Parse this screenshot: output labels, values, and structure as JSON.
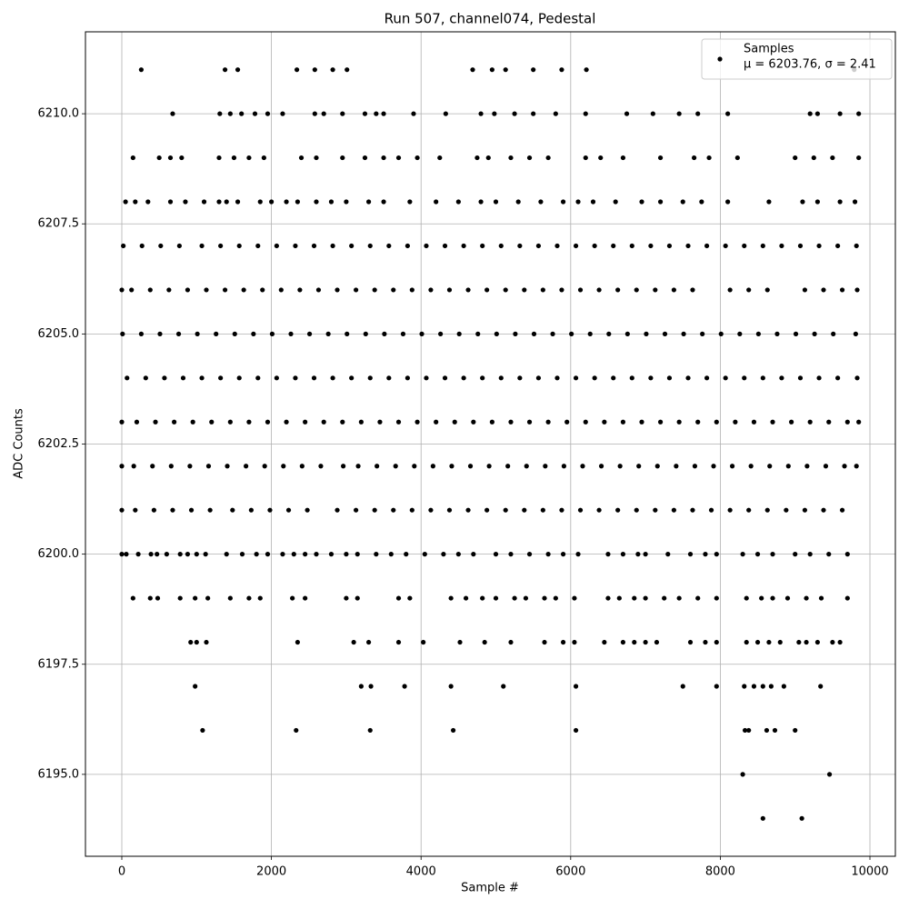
{
  "chart_data": {
    "type": "scatter",
    "title": "Run 507, channel074, Pedestal",
    "x_label": "Sample #",
    "y_label": "ADC Counts",
    "annotation": "μ = 6203.76, σ = 2.41",
    "legend": "upper right",
    "grid": true,
    "xlim": [
      -486,
      10340
    ],
    "ylim": [
      6193.14,
      6211.86
    ],
    "xticks": [
      0,
      2000,
      4000,
      6000,
      8000,
      10000
    ],
    "yticks": [
      {
        "value": 6195,
        "label": "6195.0"
      },
      {
        "value": 6197.5,
        "label": "6197.5"
      },
      {
        "value": 6200,
        "label": "6200.0"
      },
      {
        "value": 6202.5,
        "label": "6202.5"
      },
      {
        "value": 6205,
        "label": "6205.0"
      },
      {
        "value": 6207.5,
        "label": "6207.5"
      },
      {
        "value": 6210,
        "label": "6210.0"
      }
    ],
    "x": [
      20,
      270,
      520,
      770,
      1070,
      1320,
      1570,
      1820,
      2070,
      2320,
      2570,
      2820,
      3070,
      3320,
      3570,
      3820,
      4070,
      4320,
      4570,
      4820,
      5070,
      5320,
      5570,
      5820,
      6070,
      6320,
      6570,
      6820,
      7070,
      7320,
      7570,
      7820,
      8070,
      8320,
      8570,
      8820,
      9070,
      9320,
      9570,
      9820,
      0,
      130,
      380,
      630,
      880,
      1130,
      1380,
      1630,
      1880,
      2130,
      2380,
      2630,
      2880,
      3130,
      3380,
      3630,
      3880,
      4130,
      4380,
      4630,
      4880,
      5130,
      5380,
      5630,
      5880,
      6130,
      6380,
      6630,
      6880,
      7130,
      7380,
      7630,
      8130,
      8380,
      8630,
      9130,
      9380,
      9630,
      9830,
      10,
      260,
      510,
      760,
      1010,
      1260,
      1510,
      1760,
      2010,
      2260,
      2510,
      2760,
      3010,
      3260,
      3510,
      3760,
      4010,
      4260,
      4510,
      4760,
      5010,
      5260,
      5510,
      5760,
      6010,
      6260,
      6510,
      6760,
      7010,
      7260,
      7510,
      7760,
      8010,
      8260,
      8510,
      8760,
      9010,
      9260,
      9510,
      9810,
      70,
      320,
      570,
      820,
      1070,
      1320,
      1570,
      1820,
      2070,
      2320,
      2570,
      2820,
      3070,
      3320,
      3570,
      3820,
      4070,
      4320,
      4570,
      4820,
      5070,
      5320,
      5570,
      5820,
      6070,
      6320,
      6570,
      6820,
      7070,
      7320,
      7570,
      7820,
      8070,
      8320,
      8570,
      8820,
      9070,
      9320,
      9570,
      9830,
      0,
      200,
      450,
      700,
      950,
      1200,
      1450,
      1700,
      1950,
      2200,
      2450,
      2700,
      2950,
      3200,
      3450,
      3700,
      3950,
      4200,
      4450,
      4700,
      4950,
      5200,
      5450,
      5700,
      5950,
      6200,
      6450,
      6700,
      6950,
      7200,
      7450,
      7700,
      7950,
      8200,
      8450,
      8700,
      8950,
      9200,
      9450,
      9700,
      9850,
      0,
      160,
      410,
      660,
      910,
      1160,
      1410,
      1660,
      1910,
      2160,
      2410,
      2660,
      2960,
      3160,
      3410,
      3660,
      3910,
      4160,
      4410,
      4660,
      4910,
      5160,
      5410,
      5660,
      5910,
      6160,
      6410,
      6660,
      6910,
      7160,
      7410,
      7660,
      7910,
      8160,
      8410,
      8660,
      8910,
      9160,
      9410,
      9660,
      9820,
      0,
      180,
      430,
      680,
      930,
      1180,
      1480,
      1730,
      1980,
      2230,
      2480,
      2880,
      3130,
      3380,
      3630,
      3880,
      4130,
      4380,
      4630,
      4880,
      5130,
      5380,
      5630,
      5880,
      6130,
      6380,
      6630,
      6880,
      7130,
      7380,
      7630,
      7880,
      8130,
      8380,
      8630,
      8880,
      9130,
      9380,
      9630,
      0,
      60,
      220,
      390,
      470,
      600,
      780,
      880,
      1000,
      1120,
      1400,
      1610,
      1800,
      1950,
      2150,
      2300,
      2450,
      2600,
      2800,
      3000,
      3150,
      3400,
      3600,
      3800,
      4050,
      4300,
      4500,
      4700,
      5000,
      5200,
      5450,
      5700,
      5900,
      6100,
      6500,
      6700,
      6900,
      7000,
      7300,
      7600,
      7800,
      7950,
      8300,
      8500,
      8700,
      9000,
      9200,
      9450,
      9700,
      150,
      380,
      480,
      780,
      980,
      1150,
      1450,
      1700,
      1850,
      2280,
      2450,
      3000,
      3150,
      3700,
      3850,
      4400,
      4600,
      4820,
      5000,
      5250,
      5400,
      5650,
      5800,
      6050,
      6500,
      6650,
      6850,
      7000,
      7250,
      7450,
      7700,
      7950,
      8350,
      8550,
      8700,
      8900,
      9150,
      9350,
      9700,
      920,
      1000,
      1130,
      2350,
      3100,
      3300,
      3700,
      4030,
      4520,
      4850,
      5200,
      5650,
      5900,
      6050,
      6450,
      6700,
      6850,
      7000,
      7150,
      7600,
      7800,
      7950,
      8350,
      8500,
      8650,
      8800,
      9050,
      9150,
      9300,
      9500,
      9600,
      980,
      3200,
      3330,
      3780,
      4400,
      5100,
      6070,
      7500,
      7950,
      8320,
      8450,
      8570,
      8680,
      8850,
      9340,
      1080,
      2330,
      3320,
      4430,
      6070,
      8330,
      8380,
      8620,
      8730,
      9000,
      8300,
      9460,
      8570,
      9090,
      50,
      180,
      350,
      650,
      850,
      1100,
      1300,
      1400,
      1550,
      1850,
      2000,
      2200,
      2350,
      2600,
      2800,
      3000,
      3300,
      3500,
      3850,
      4200,
      4500,
      4800,
      5000,
      5300,
      5600,
      5900,
      6100,
      6300,
      6600,
      6950,
      7200,
      7500,
      7750,
      8100,
      8650,
      9100,
      9300,
      9600,
      9800,
      150,
      500,
      650,
      800,
      1300,
      1500,
      1700,
      1900,
      2400,
      2600,
      2950,
      3250,
      3500,
      3700,
      3950,
      4250,
      4750,
      4900,
      5200,
      5450,
      5700,
      6200,
      6400,
      6700,
      7200,
      7650,
      7850,
      8230,
      9000,
      9250,
      9500,
      9850,
      680,
      1310,
      1450,
      1600,
      1780,
      1950,
      2150,
      2580,
      2700,
      2950,
      3250,
      3400,
      3500,
      3900,
      4330,
      4800,
      4980,
      5250,
      5500,
      5800,
      6200,
      6750,
      7100,
      7450,
      7700,
      8100,
      9200,
      9300,
      9600,
      9850,
      260,
      1380,
      1550,
      2340,
      2580,
      2820,
      3010,
      4690,
      4950,
      5130,
      5500,
      5880,
      6210,
      9790
    ],
    "series": [
      {
        "name": "Samples",
        "color": "#000000",
        "values": [
          6207,
          6207,
          6207,
          6207,
          6207,
          6207,
          6207,
          6207,
          6207,
          6207,
          6207,
          6207,
          6207,
          6207,
          6207,
          6207,
          6207,
          6207,
          6207,
          6207,
          6207,
          6207,
          6207,
          6207,
          6207,
          6207,
          6207,
          6207,
          6207,
          6207,
          6207,
          6207,
          6207,
          6207,
          6207,
          6207,
          6207,
          6207,
          6207,
          6207,
          6206,
          6206,
          6206,
          6206,
          6206,
          6206,
          6206,
          6206,
          6206,
          6206,
          6206,
          6206,
          6206,
          6206,
          6206,
          6206,
          6206,
          6206,
          6206,
          6206,
          6206,
          6206,
          6206,
          6206,
          6206,
          6206,
          6206,
          6206,
          6206,
          6206,
          6206,
          6206,
          6206,
          6206,
          6206,
          6206,
          6206,
          6206,
          6206,
          6205,
          6205,
          6205,
          6205,
          6205,
          6205,
          6205,
          6205,
          6205,
          6205,
          6205,
          6205,
          6205,
          6205,
          6205,
          6205,
          6205,
          6205,
          6205,
          6205,
          6205,
          6205,
          6205,
          6205,
          6205,
          6205,
          6205,
          6205,
          6205,
          6205,
          6205,
          6205,
          6205,
          6205,
          6205,
          6205,
          6205,
          6205,
          6205,
          6205,
          6204,
          6204,
          6204,
          6204,
          6204,
          6204,
          6204,
          6204,
          6204,
          6204,
          6204,
          6204,
          6204,
          6204,
          6204,
          6204,
          6204,
          6204,
          6204,
          6204,
          6204,
          6204,
          6204,
          6204,
          6204,
          6204,
          6204,
          6204,
          6204,
          6204,
          6204,
          6204,
          6204,
          6204,
          6204,
          6204,
          6204,
          6204,
          6204,
          6204,
          6203,
          6203,
          6203,
          6203,
          6203,
          6203,
          6203,
          6203,
          6203,
          6203,
          6203,
          6203,
          6203,
          6203,
          6203,
          6203,
          6203,
          6203,
          6203,
          6203,
          6203,
          6203,
          6203,
          6203,
          6203,
          6203,
          6203,
          6203,
          6203,
          6203,
          6203,
          6203,
          6203,
          6203,
          6203,
          6203,
          6203,
          6203,
          6203,
          6203,
          6203,
          6202,
          6202,
          6202,
          6202,
          6202,
          6202,
          6202,
          6202,
          6202,
          6202,
          6202,
          6202,
          6202,
          6202,
          6202,
          6202,
          6202,
          6202,
          6202,
          6202,
          6202,
          6202,
          6202,
          6202,
          6202,
          6202,
          6202,
          6202,
          6202,
          6202,
          6202,
          6202,
          6202,
          6202,
          6202,
          6202,
          6202,
          6202,
          6202,
          6202,
          6202,
          6201,
          6201,
          6201,
          6201,
          6201,
          6201,
          6201,
          6201,
          6201,
          6201,
          6201,
          6201,
          6201,
          6201,
          6201,
          6201,
          6201,
          6201,
          6201,
          6201,
          6201,
          6201,
          6201,
          6201,
          6201,
          6201,
          6201,
          6201,
          6201,
          6201,
          6201,
          6201,
          6201,
          6201,
          6201,
          6201,
          6201,
          6201,
          6201,
          6200,
          6200,
          6200,
          6200,
          6200,
          6200,
          6200,
          6200,
          6200,
          6200,
          6200,
          6200,
          6200,
          6200,
          6200,
          6200,
          6200,
          6200,
          6200,
          6200,
          6200,
          6200,
          6200,
          6200,
          6200,
          6200,
          6200,
          6200,
          6200,
          6200,
          6200,
          6200,
          6200,
          6200,
          6200,
          6200,
          6200,
          6200,
          6200,
          6200,
          6200,
          6200,
          6200,
          6200,
          6200,
          6200,
          6200,
          6200,
          6200,
          6199,
          6199,
          6199,
          6199,
          6199,
          6199,
          6199,
          6199,
          6199,
          6199,
          6199,
          6199,
          6199,
          6199,
          6199,
          6199,
          6199,
          6199,
          6199,
          6199,
          6199,
          6199,
          6199,
          6199,
          6199,
          6199,
          6199,
          6199,
          6199,
          6199,
          6199,
          6199,
          6199,
          6199,
          6199,
          6199,
          6199,
          6199,
          6199,
          6198,
          6198,
          6198,
          6198,
          6198,
          6198,
          6198,
          6198,
          6198,
          6198,
          6198,
          6198,
          6198,
          6198,
          6198,
          6198,
          6198,
          6198,
          6198,
          6198,
          6198,
          6198,
          6198,
          6198,
          6198,
          6198,
          6198,
          6198,
          6198,
          6198,
          6198,
          6197,
          6197,
          6197,
          6197,
          6197,
          6197,
          6197,
          6197,
          6197,
          6197,
          6197,
          6197,
          6197,
          6197,
          6197,
          6196,
          6196,
          6196,
          6196,
          6196,
          6196,
          6196,
          6196,
          6196,
          6196,
          6195,
          6195,
          6194,
          6194,
          6208,
          6208,
          6208,
          6208,
          6208,
          6208,
          6208,
          6208,
          6208,
          6208,
          6208,
          6208,
          6208,
          6208,
          6208,
          6208,
          6208,
          6208,
          6208,
          6208,
          6208,
          6208,
          6208,
          6208,
          6208,
          6208,
          6208,
          6208,
          6208,
          6208,
          6208,
          6208,
          6208,
          6208,
          6208,
          6208,
          6208,
          6208,
          6208,
          6209,
          6209,
          6209,
          6209,
          6209,
          6209,
          6209,
          6209,
          6209,
          6209,
          6209,
          6209,
          6209,
          6209,
          6209,
          6209,
          6209,
          6209,
          6209,
          6209,
          6209,
          6209,
          6209,
          6209,
          6209,
          6209,
          6209,
          6209,
          6209,
          6209,
          6209,
          6209,
          6210,
          6210,
          6210,
          6210,
          6210,
          6210,
          6210,
          6210,
          6210,
          6210,
          6210,
          6210,
          6210,
          6210,
          6210,
          6210,
          6210,
          6210,
          6210,
          6210,
          6210,
          6210,
          6210,
          6210,
          6210,
          6210,
          6210,
          6210,
          6210,
          6210,
          6211,
          6211,
          6211,
          6211,
          6211,
          6211,
          6211,
          6211,
          6211,
          6211,
          6211,
          6211,
          6211,
          6211
        ]
      }
    ]
  }
}
